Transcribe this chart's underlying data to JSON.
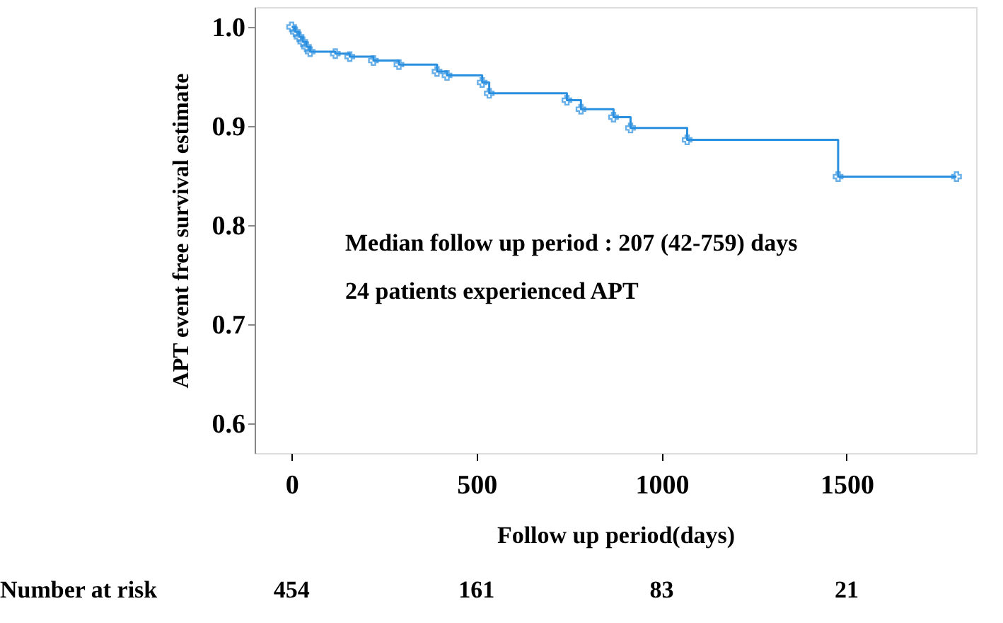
{
  "chart_data": {
    "type": "step",
    "xlabel": "Follow up period(days)",
    "ylabel": "APT event free survival estimate",
    "x": [
      0,
      10,
      20,
      30,
      40,
      50,
      118,
      157,
      221,
      290,
      393,
      420,
      515,
      534,
      744,
      782,
      870,
      916,
      1069,
      1477,
      1797
    ],
    "series": [
      {
        "color": "#2b8fe0",
        "values": [
          1.0,
          0.995,
          0.99,
          0.985,
          0.98,
          0.975,
          0.973,
          0.97,
          0.966,
          0.962,
          0.955,
          0.951,
          0.944,
          0.933,
          0.926,
          0.917,
          0.909,
          0.898,
          0.886,
          0.849,
          0.849
        ]
      }
    ],
    "marker": "cross",
    "grid": false,
    "xlim": [
      -100,
      1850
    ],
    "xticks": [
      0,
      500,
      1000,
      1500
    ],
    "ylim": [
      0.57,
      1.02
    ],
    "yticks": [
      0.6,
      0.7,
      0.8,
      0.9,
      {
        "value": 1.0,
        "label": "1.0"
      }
    ],
    "annotations": [
      "Median follow up period : 207 (42-759) days",
      "24 patients experienced APT",
      "Number at risk",
      "454",
      "161",
      "83",
      "21"
    ]
  }
}
